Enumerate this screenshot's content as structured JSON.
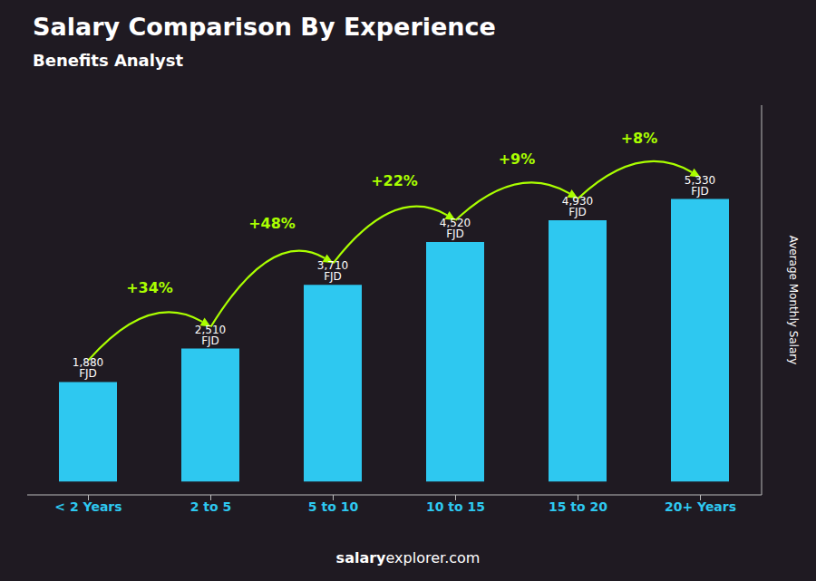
{
  "chart_data": {
    "type": "bar",
    "title": "Salary Comparison By Experience",
    "subtitle": "Benefits Analyst",
    "y_label": "Average Monthly Salary",
    "categories": [
      "< 2 Years",
      "2 to 5",
      "5 to 10",
      "10 to 15",
      "15 to 20",
      "20+ Years"
    ],
    "values": [
      1880,
      2510,
      3710,
      4520,
      4930,
      5330
    ],
    "value_labels": [
      "1,880 FJD",
      "2,510 FJD",
      "3,710 FJD",
      "4,520 FJD",
      "4,930 FJD",
      "5,330 FJD"
    ],
    "data_labels": true,
    "color": "#2ec8f0",
    "ylim": [
      -250,
      7100
    ],
    "tick_labels": "x",
    "grid": false,
    "annotations": [
      {
        "text": "+34%",
        "from": 0,
        "to": 1,
        "color": "#aaff00"
      },
      {
        "text": "+48%",
        "from": 1,
        "to": 2,
        "color": "#aaff00"
      },
      {
        "text": "+22%",
        "from": 2,
        "to": 3,
        "color": "#aaff00"
      },
      {
        "text": "+9%",
        "from": 3,
        "to": 4,
        "color": "#aaff00"
      },
      {
        "text": "+8%",
        "from": 4,
        "to": 5,
        "color": "#aaff00"
      }
    ],
    "footer": [
      "salary",
      "explorer.com"
    ]
  }
}
